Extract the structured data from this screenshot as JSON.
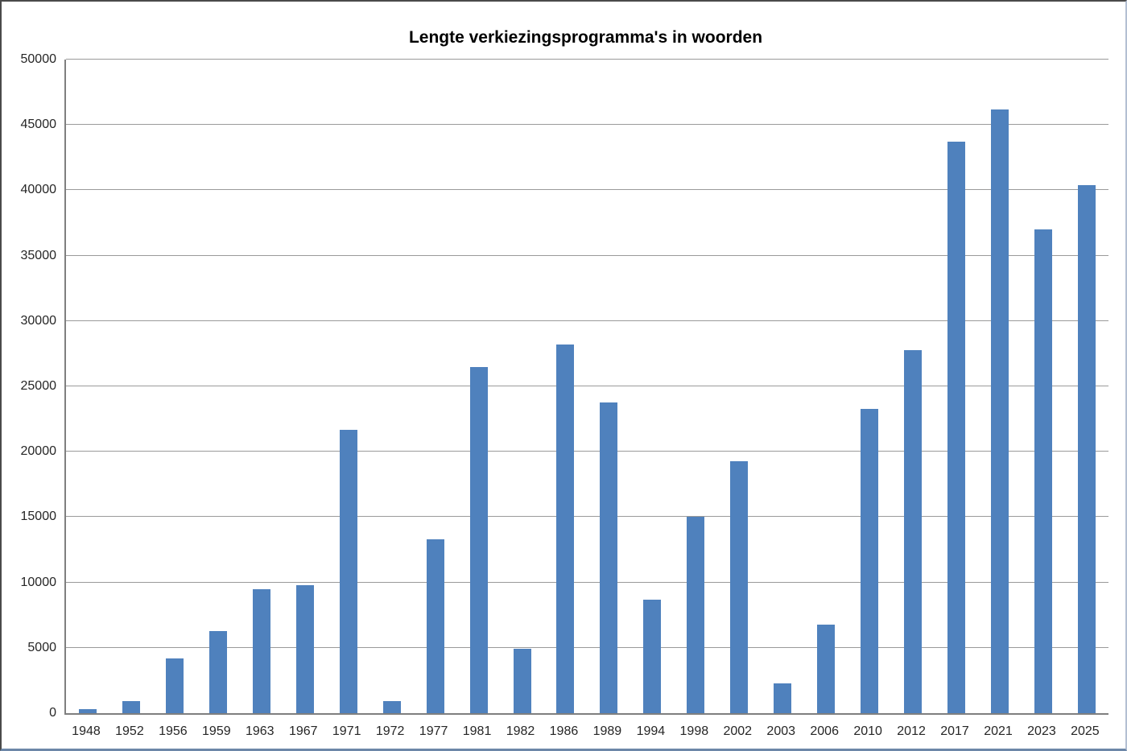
{
  "chart_data": {
    "type": "bar",
    "title": "Lengte verkiezingsprogramma's in woorden",
    "categories": [
      "1948",
      "1952",
      "1956",
      "1959",
      "1963",
      "1967",
      "1971",
      "1972",
      "1977",
      "1981",
      "1982",
      "1986",
      "1989",
      "1994",
      "1998",
      "2002",
      "2003",
      "2006",
      "2010",
      "2012",
      "2017",
      "2021",
      "2023",
      "2025"
    ],
    "values": [
      300,
      900,
      4200,
      6300,
      9500,
      9800,
      21700,
      900,
      13300,
      26500,
      4900,
      28200,
      23800,
      8700,
      15000,
      19300,
      2300,
      6800,
      23300,
      27800,
      43700,
      46200,
      37000,
      40400
    ],
    "xlabel": "",
    "ylabel": "",
    "ylim": [
      0,
      50000
    ],
    "y_ticks": [
      0,
      5000,
      10000,
      15000,
      20000,
      25000,
      30000,
      35000,
      40000,
      45000,
      50000
    ],
    "grid": "horizontal-only",
    "legend": "none",
    "colors": {
      "bar_fill": "#4f81bd",
      "gridline": "#9a9a9a",
      "axis_line": "#7f7f7f",
      "tick_label": "#262626",
      "title": "#000000",
      "background": "#ffffff"
    }
  }
}
